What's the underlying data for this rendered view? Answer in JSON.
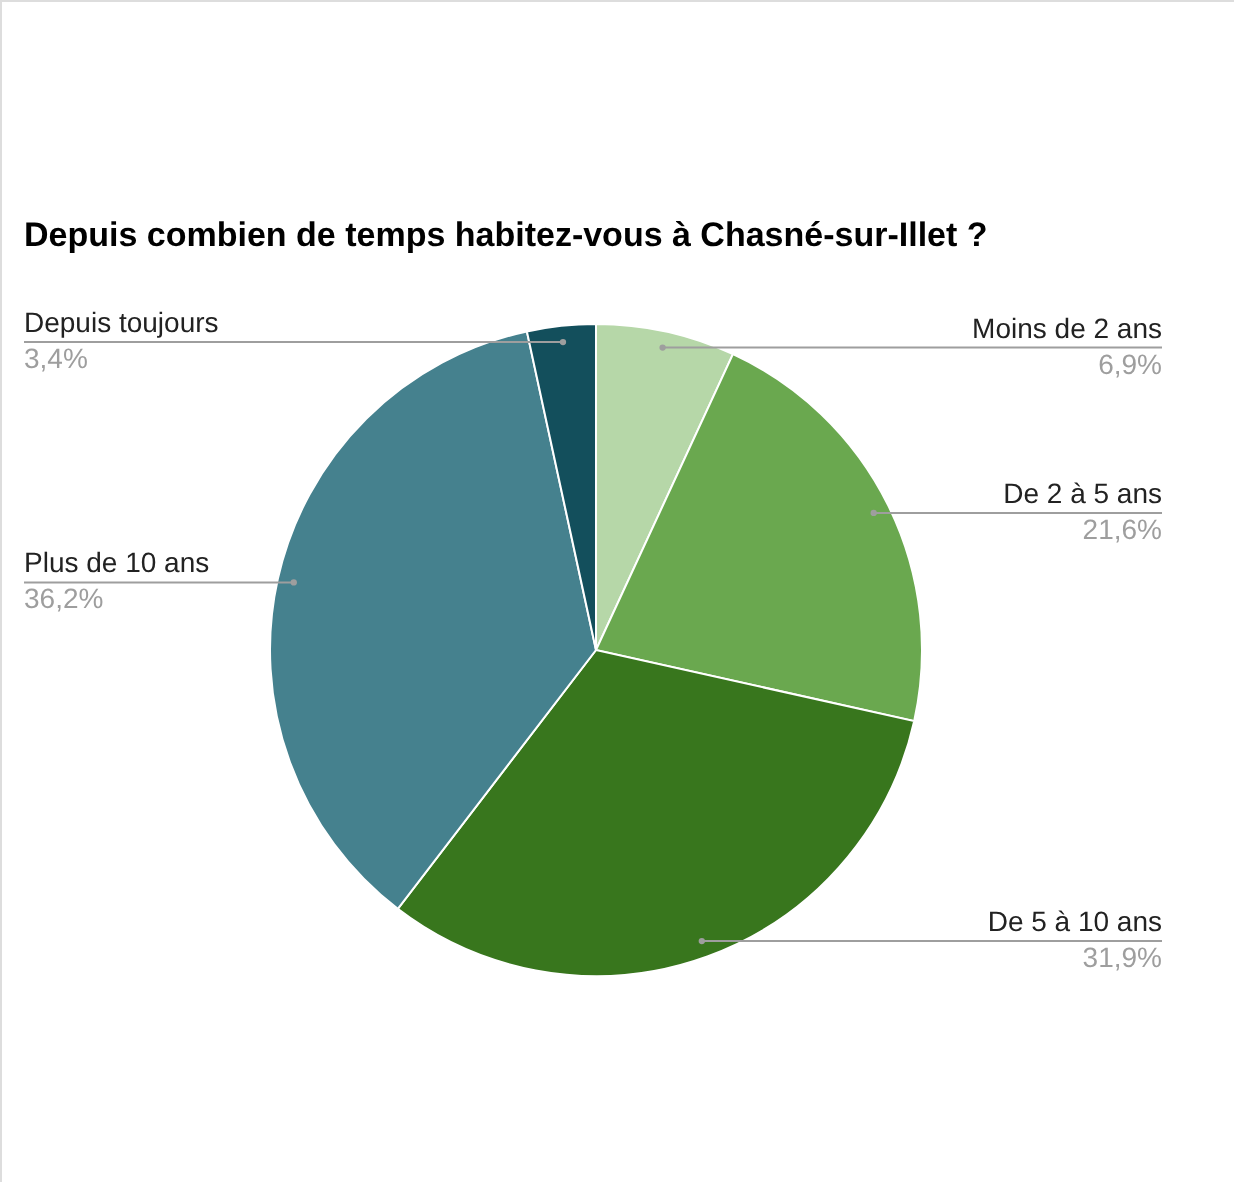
{
  "chart_data": {
    "type": "pie",
    "title": "Depuis combien de temps habitez-vous à Chasné-sur-Illet ?",
    "categories": [
      "Moins de 2 ans",
      "De 2 à 5 ans",
      "De 5 à 10 ans",
      "Plus de 10 ans",
      "Depuis toujours"
    ],
    "values": [
      6.9,
      21.6,
      31.9,
      36.2,
      3.4
    ],
    "value_labels": [
      "6,9%",
      "21,6%",
      "31,9%",
      "36,2%",
      "3,4%"
    ],
    "colors": [
      "#b6d7a8",
      "#6aa84f",
      "#38761d",
      "#45818e",
      "#134f5c"
    ]
  }
}
